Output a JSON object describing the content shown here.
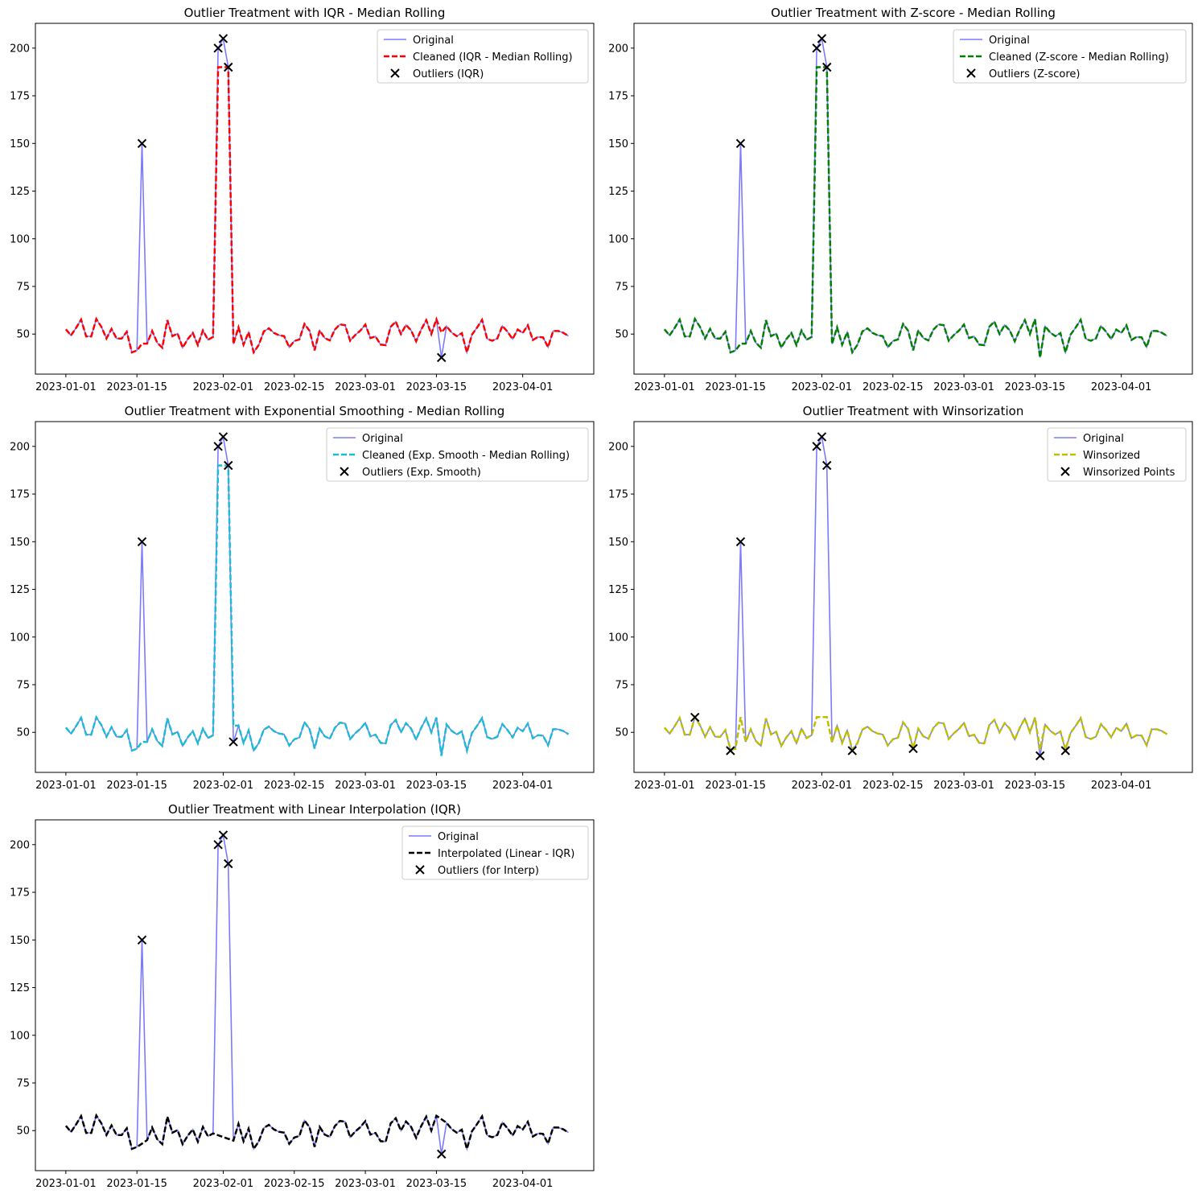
{
  "chart_data": [
    {
      "type": "line",
      "title": "Outlier Treatment with IQR - Median Rolling",
      "xlabel": "",
      "ylabel": "",
      "xlim_day": [
        -6,
        104
      ],
      "ylim": [
        29,
        213
      ],
      "yticks": [
        50,
        75,
        100,
        125,
        150,
        175,
        200
      ],
      "xticks": [
        "2023-01-01",
        "2023-01-15",
        "2023-02-01",
        "2023-02-15",
        "2023-03-01",
        "2023-03-15",
        "2023-04-01"
      ],
      "series": [
        {
          "name": "Original",
          "style": "original"
        },
        {
          "name": "Cleaned (IQR - Median Rolling)",
          "style": "cleaned",
          "color": "#ff0000",
          "method": "rolling_keep_high"
        }
      ],
      "outlier_label": "Outliers (IQR)",
      "outlier_days": [
        15,
        30,
        31,
        32,
        74
      ],
      "legend_loc": "upper-right"
    },
    {
      "type": "line",
      "title": "Outlier Treatment with Z-score - Median Rolling",
      "xlabel": "",
      "ylabel": "",
      "xlim_day": [
        -6,
        104
      ],
      "ylim": [
        29,
        213
      ],
      "yticks": [
        50,
        75,
        100,
        125,
        150,
        175,
        200
      ],
      "xticks": [
        "2023-01-01",
        "2023-01-15",
        "2023-02-01",
        "2023-02-15",
        "2023-03-01",
        "2023-03-15",
        "2023-04-01"
      ],
      "series": [
        {
          "name": "Original",
          "style": "original"
        },
        {
          "name": "Cleaned (Z-score - Median Rolling)",
          "style": "cleaned",
          "color": "#008000",
          "method": "rolling_keep_high_low"
        }
      ],
      "outlier_label": "Outliers (Z-score)",
      "outlier_days": [
        15,
        30,
        31,
        32
      ],
      "legend_loc": "upper-right"
    },
    {
      "type": "line",
      "title": "Outlier Treatment with Exponential Smoothing - Median Rolling",
      "xlabel": "",
      "ylabel": "",
      "xlim_day": [
        -6,
        104
      ],
      "ylim": [
        29,
        213
      ],
      "yticks": [
        50,
        75,
        100,
        125,
        150,
        175,
        200
      ],
      "xticks": [
        "2023-01-01",
        "2023-01-15",
        "2023-02-01",
        "2023-02-15",
        "2023-03-01",
        "2023-03-15",
        "2023-04-01"
      ],
      "series": [
        {
          "name": "Original",
          "style": "original"
        },
        {
          "name": "Cleaned (Exp. Smooth - Median Rolling)",
          "style": "cleaned",
          "color": "#17becf",
          "method": "rolling_keep_high_low"
        }
      ],
      "outlier_label": "Outliers (Exp. Smooth)",
      "outlier_days": [
        15,
        30,
        31,
        32,
        33
      ],
      "outlier_values": {
        "33": 45
      },
      "legend_loc": "upper-right"
    },
    {
      "type": "line",
      "title": "Outlier Treatment with Winsorization",
      "xlabel": "",
      "ylabel": "",
      "xlim_day": [
        -6,
        104
      ],
      "ylim": [
        29,
        213
      ],
      "yticks": [
        50,
        75,
        100,
        125,
        150,
        175,
        200
      ],
      "xticks": [
        "2023-01-01",
        "2023-01-15",
        "2023-02-01",
        "2023-02-15",
        "2023-03-01",
        "2023-03-15",
        "2023-04-01"
      ],
      "series": [
        {
          "name": "Original",
          "style": "original"
        },
        {
          "name": "Winsorized",
          "style": "cleaned",
          "color": "#bfbf00",
          "method": "winsorize"
        }
      ],
      "outlier_label": "Winsorized Points",
      "outlier_days": [
        6,
        13,
        15,
        30,
        31,
        32,
        37,
        49,
        74,
        79
      ],
      "legend_loc": "upper-right"
    },
    {
      "type": "line",
      "title": "Outlier Treatment with Linear Interpolation (IQR)",
      "xlabel": "",
      "ylabel": "",
      "xlim_day": [
        -6,
        104
      ],
      "ylim": [
        29,
        213
      ],
      "yticks": [
        50,
        75,
        100,
        125,
        150,
        175,
        200
      ],
      "xticks": [
        "2023-01-01",
        "2023-01-15",
        "2023-02-01",
        "2023-02-15",
        "2023-03-01",
        "2023-03-15",
        "2023-04-01"
      ],
      "series": [
        {
          "name": "Original",
          "style": "original"
        },
        {
          "name": "Interpolated (Linear - IQR)",
          "style": "cleaned",
          "color": "#000000",
          "method": "interpolate"
        }
      ],
      "outlier_label": "Outliers (for Interp)",
      "outlier_days": [
        15,
        30,
        31,
        32,
        74
      ],
      "legend_loc": "upper-right"
    }
  ],
  "original_values": [
    52.5,
    49.3,
    53.2,
    57.6,
    48.8,
    48.8,
    57.9,
    53.8,
    47.7,
    52.7,
    47.7,
    47.7,
    51.2,
    40.4,
    41.4,
    150,
    45,
    51.6,
    45.5,
    42.9,
    57.3,
    48.9,
    50.3,
    42.9,
    47.3,
    50.6,
    44.2,
    51.9,
    47,
    48.5,
    200,
    205,
    190,
    44.8,
    53.5,
    44.4,
    51,
    40.4,
    44.3,
    51.4,
    53,
    50.6,
    49.4,
    48.9,
    43.1,
    46.4,
    47.2,
    55.3,
    51.8,
    41.5,
    51.9,
    47.9,
    46.7,
    52.4,
    55.1,
    54.7,
    46.5,
    49.5,
    51.8,
    55,
    47.9,
    48.8,
    44.5,
    44.2,
    53.8,
    56.5,
    50,
    54.8,
    52,
    46.2,
    52.4,
    57.3,
    50,
    57.8,
    37.7,
    54.1,
    50.8,
    48.9,
    50.5,
    40.4,
    49.7,
    53.4,
    57.5,
    47.5,
    46.5,
    47.7,
    54.3,
    51.3,
    47.4,
    52.4,
    50.6,
    54.6,
    46.9,
    48.5,
    48.3,
    43.2,
    51.6,
    51.6,
    50.7,
    49
  ]
}
